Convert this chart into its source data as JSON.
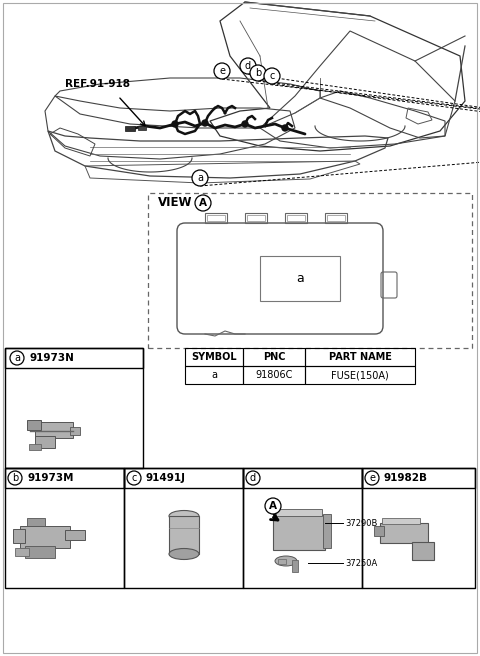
{
  "bg_color": "#ffffff",
  "ref_label": "REF.91-918",
  "table_headers": [
    "SYMBOL",
    "PNC",
    "PART NAME"
  ],
  "table_row": [
    "a",
    "91806C",
    "FUSE(150A)"
  ],
  "part_a_pnc": "91973N",
  "part_b_pnc": "91973M",
  "part_c_pnc": "91491J",
  "part_d_label1": "37290B",
  "part_d_label2": "37250A",
  "part_e_pnc": "91982B",
  "view_label": "VIEW",
  "view_circle": "A"
}
